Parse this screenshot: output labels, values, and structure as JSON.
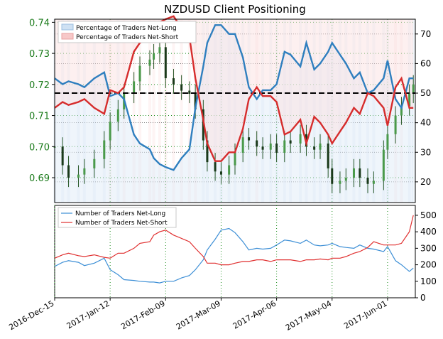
{
  "chart_data": [
    {
      "type": "line",
      "title": "NZDUSD Client Positioning",
      "left_axis": {
        "label": "",
        "ticks": [
          "0.69",
          "0.70",
          "0.71",
          "0.72",
          "0.73",
          "0.74"
        ],
        "ylim": [
          0.682,
          0.741
        ],
        "color": "#1a7a1a"
      },
      "right_axis": {
        "label": "",
        "ticks": [
          "20",
          "30",
          "40",
          "50",
          "60",
          "70"
        ],
        "ylim": [
          13,
          75
        ]
      },
      "x_ticks": [
        "2016-Dec-15",
        "2017-Jan-12",
        "2017-Feb-09",
        "2017-Mar-09",
        "2017-Apr-06",
        "2017-May-04",
        "2017-Jun-01"
      ],
      "reference_line": 50,
      "legend": [
        "Percentage of Traders Net-Long",
        "Percentage of Traders Net-Short"
      ],
      "legend_position": "top-left",
      "colors": {
        "net_long": "#2f7fbf",
        "net_short": "#d62c2c",
        "net_short_dark": "#b01010",
        "long_fill": "#dbe9f6",
        "short_fill": "#fbe0e0",
        "candle": "#2a5a2a",
        "grid": "#1a8c1a"
      },
      "dates": [
        "2016-12-15",
        "2016-12-19",
        "2016-12-22",
        "2016-12-27",
        "2016-12-30",
        "2017-01-04",
        "2017-01-09",
        "2017-01-12",
        "2017-01-16",
        "2017-01-19",
        "2017-01-24",
        "2017-01-27",
        "2017-02-01",
        "2017-02-03",
        "2017-02-06",
        "2017-02-09",
        "2017-02-13",
        "2017-02-17",
        "2017-02-21",
        "2017-02-24",
        "2017-02-28",
        "2017-03-02",
        "2017-03-06",
        "2017-03-09",
        "2017-03-13",
        "2017-03-16",
        "2017-03-20",
        "2017-03-23",
        "2017-03-27",
        "2017-03-30",
        "2017-04-03",
        "2017-04-06",
        "2017-04-10",
        "2017-04-13",
        "2017-04-18",
        "2017-04-21",
        "2017-04-25",
        "2017-04-28",
        "2017-05-02",
        "2017-05-04",
        "2017-05-08",
        "2017-05-11",
        "2017-05-15",
        "2017-05-18",
        "2017-05-22",
        "2017-05-25",
        "2017-05-30",
        "2017-06-01",
        "2017-06-05",
        "2017-06-08",
        "2017-06-12",
        "2017-06-14"
      ],
      "series": [
        {
          "name": "Percentage of Traders Net-Long",
          "axis": "right",
          "values": [
            55,
            53,
            54,
            53,
            52,
            55,
            57,
            49,
            50,
            48,
            36,
            33,
            31,
            28,
            26,
            25,
            24,
            28,
            31,
            45,
            59,
            67,
            73,
            73,
            70,
            70,
            62,
            52,
            48,
            51,
            51,
            53,
            64,
            63,
            59,
            67,
            58,
            60,
            64,
            67,
            63,
            60,
            55,
            57,
            50,
            51,
            55,
            61,
            48,
            45,
            55,
            55
          ]
        },
        {
          "name": "Percentage of Traders Net-Short",
          "axis": "right",
          "values": [
            45,
            47,
            46,
            47,
            48,
            45,
            43,
            51,
            50,
            52,
            64,
            67,
            69,
            72,
            74,
            75,
            76,
            72,
            69,
            55,
            41,
            33,
            27,
            27,
            30,
            30,
            38,
            48,
            52,
            49,
            49,
            47,
            36,
            37,
            41,
            33,
            42,
            40,
            36,
            33,
            37,
            40,
            45,
            43,
            50,
            49,
            45,
            39,
            52,
            55,
            45,
            45
          ]
        },
        {
          "name": "NZDUSD",
          "axis": "left",
          "kind": "candlestick",
          "values": [
            0.7,
            0.694,
            0.69,
            0.691,
            0.693,
            0.696,
            0.702,
            0.708,
            0.712,
            0.717,
            0.721,
            0.726,
            0.728,
            0.73,
            0.732,
            0.722,
            0.72,
            0.718,
            0.717,
            0.712,
            0.702,
            0.695,
            0.692,
            0.691,
            0.694,
            0.698,
            0.703,
            0.702,
            0.7,
            0.699,
            0.701,
            0.698,
            0.702,
            0.701,
            0.704,
            0.7,
            0.699,
            0.701,
            0.693,
            0.688,
            0.689,
            0.69,
            0.693,
            0.69,
            0.688,
            0.689,
            0.699,
            0.704,
            0.71,
            0.713,
            0.717,
            0.72
          ]
        }
      ]
    },
    {
      "type": "line",
      "title": "",
      "right_axis": {
        "label": "",
        "ticks": [
          "0",
          "100",
          "200",
          "300",
          "400",
          "500"
        ],
        "ylim": [
          0,
          560
        ]
      },
      "legend": [
        "Number of Traders Net-Long",
        "Number of Traders Net-Short"
      ],
      "legend_position": "top-left",
      "series": [
        {
          "name": "Number of Traders Net-Long",
          "values": [
            190,
            215,
            225,
            215,
            195,
            210,
            240,
            170,
            140,
            110,
            105,
            100,
            95,
            95,
            90,
            100,
            100,
            120,
            135,
            170,
            230,
            290,
            355,
            410,
            420,
            395,
            340,
            290,
            300,
            295,
            300,
            320,
            350,
            345,
            330,
            350,
            320,
            315,
            320,
            330,
            310,
            305,
            300,
            320,
            300,
            295,
            280,
            310,
            225,
            200,
            160,
            180
          ]
        },
        {
          "name": "Number of Traders Net-Short",
          "values": [
            240,
            260,
            270,
            255,
            250,
            260,
            245,
            240,
            270,
            270,
            300,
            330,
            340,
            380,
            400,
            410,
            380,
            360,
            340,
            300,
            250,
            210,
            210,
            200,
            200,
            210,
            220,
            220,
            230,
            230,
            220,
            230,
            230,
            230,
            220,
            230,
            230,
            235,
            230,
            240,
            240,
            250,
            270,
            280,
            305,
            340,
            320,
            320,
            320,
            330,
            400,
            500
          ]
        }
      ]
    }
  ]
}
